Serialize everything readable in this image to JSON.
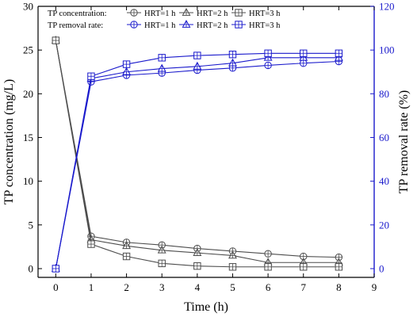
{
  "colors": {
    "conc": "#4d4d4d",
    "removal": "#1a1acc",
    "axis": "#000000",
    "right_axis": "#1a1acc"
  },
  "chart_data": {
    "type": "line",
    "x_title": "Time (h)",
    "y_left_title": "TP concentration (mg/L)",
    "y_right_title": "TP removal rate (%)",
    "xlim": [
      -0.5,
      9
    ],
    "ylim_left": [
      -1,
      30
    ],
    "ylim_right": [
      -4,
      120
    ],
    "x_ticks": [
      0,
      1,
      2,
      3,
      4,
      5,
      6,
      7,
      8,
      9
    ],
    "y_left_ticks": [
      0,
      5,
      10,
      15,
      20,
      25,
      30
    ],
    "y_right_ticks": [
      0,
      20,
      40,
      60,
      80,
      100,
      120
    ],
    "x": [
      0,
      1,
      2,
      3,
      4,
      5,
      6,
      7,
      8
    ],
    "series": [
      {
        "group": "concentration",
        "name": "HRT=1 h",
        "marker": "circle",
        "axis": "left",
        "values": [
          26.1,
          3.7,
          3.0,
          2.7,
          2.3,
          2.0,
          1.7,
          1.4,
          1.3
        ]
      },
      {
        "group": "concentration",
        "name": "HRT=2 h",
        "marker": "triangle",
        "axis": "left",
        "values": [
          26.1,
          3.3,
          2.6,
          2.1,
          1.8,
          1.5,
          0.7,
          0.7,
          0.7
        ]
      },
      {
        "group": "concentration",
        "name": "HRT=3 h",
        "marker": "square",
        "axis": "left",
        "values": [
          26.1,
          2.8,
          1.4,
          0.6,
          0.3,
          0.2,
          0.2,
          0.2,
          0.2
        ]
      },
      {
        "group": "removal",
        "name": "HRT=1 h",
        "marker": "circle",
        "axis": "right",
        "values": [
          0,
          85.5,
          88.5,
          89.5,
          90.8,
          91.8,
          93.0,
          94.0,
          94.8
        ]
      },
      {
        "group": "removal",
        "name": "HRT=2 h",
        "marker": "triangle",
        "axis": "right",
        "values": [
          0,
          87.0,
          90.0,
          91.5,
          92.5,
          94.0,
          96.5,
          96.5,
          96.5
        ]
      },
      {
        "group": "removal",
        "name": "HRT=3 h",
        "marker": "square",
        "axis": "right",
        "values": [
          0,
          88.0,
          93.5,
          96.5,
          97.5,
          98.0,
          98.5,
          98.5,
          98.5
        ]
      }
    ],
    "legend": {
      "placement": "top-left",
      "rows": [
        {
          "label": "TP concentration:",
          "group": "concentration",
          "entries": [
            "HRT=1 h",
            "HRT=2 h",
            "HRT=3 h"
          ]
        },
        {
          "label": "TP removal rate:",
          "group": "removal",
          "entries": [
            "HRT=1 h",
            "HRT=2 h",
            "HRT=3 h"
          ]
        }
      ]
    }
  }
}
